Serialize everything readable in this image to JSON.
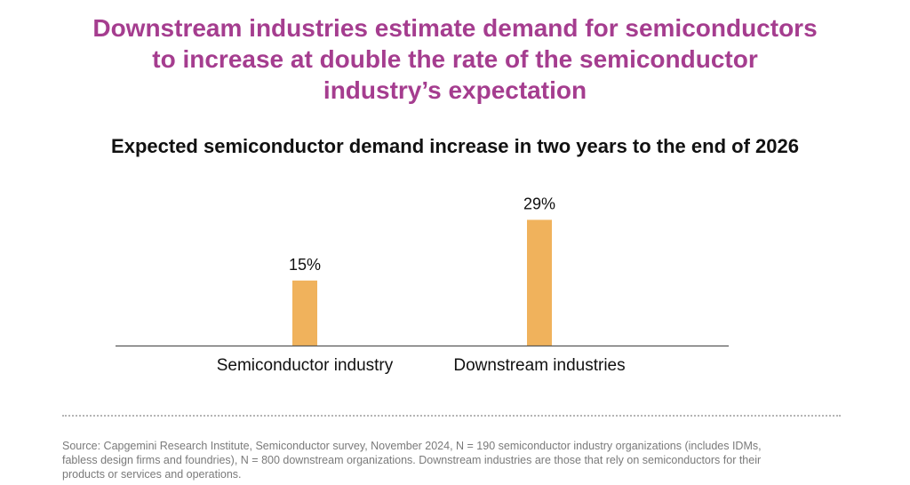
{
  "headline": {
    "line1": "Downstream industries estimate demand for semiconductors",
    "line2": "to increase at double the rate of the semiconductor",
    "line3": "industry’s expectation"
  },
  "chart_data": {
    "type": "bar",
    "title": "Expected semiconductor demand increase in two years to the end of 2026",
    "categories": [
      "Semiconductor industry",
      "Downstream industries"
    ],
    "values": [
      15,
      29
    ],
    "data_labels": [
      "15%",
      "29%"
    ],
    "unit": "%",
    "ylim": [
      0,
      30
    ],
    "grid": false,
    "legend": "none",
    "bar_color": "#f0b25c",
    "axis_color": "#555555"
  },
  "source": {
    "line1": "Source: Capgemini Research Institute, Semiconductor survey, November 2024, N = 190 semiconductor industry organizations (includes IDMs,",
    "line2": "fabless design firms and foundries), N = 800 downstream organizations. Downstream industries are those that rely on semiconductors for their",
    "line3": "products or services and operations."
  },
  "colors": {
    "headline": "#a53d8f",
    "subtitle": "#111111",
    "source_text": "#7a7a7a",
    "divider": "#b5b5b5"
  }
}
